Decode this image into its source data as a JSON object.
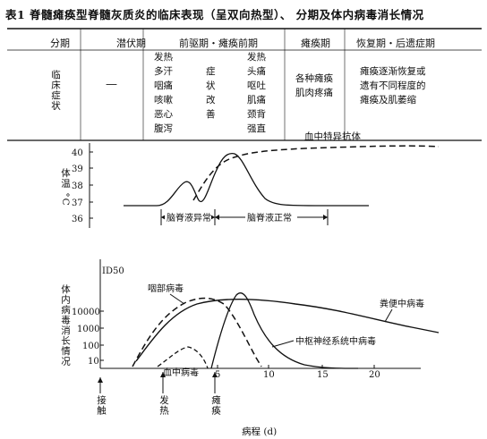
{
  "title": "表1   脊髓瘫痪型脊髓灰质炎的临床表现（呈双向热型）、  分期及体内病毒消长情况",
  "table": {
    "headers": [
      "分期",
      "潜伏期",
      "前驱期・瘫痪前期",
      "瘫痪期",
      "恢复期・后遗症期"
    ],
    "row_label": "临床症状",
    "incubation_value": "—",
    "prodromal_col1": [
      "发热",
      "多汗",
      "咽痛",
      "咳嗽",
      "恶心",
      "腹泻"
    ],
    "prodromal_col2": [
      "症",
      "状",
      "改",
      "善"
    ],
    "prodromal_col3": [
      "发热",
      "头痛",
      "呕吐",
      "肌痛",
      "颈背",
      "强直"
    ],
    "paralytic": [
      "各种瘫痪",
      "肌肉疼痛"
    ],
    "recovery": [
      "瘫痪逐渐恢复或",
      "遗有不同程度的",
      "瘫痪及肌萎缩"
    ]
  },
  "temp_chart": {
    "ylabel": "体温 °C",
    "yticks": [
      "40",
      "39",
      "38",
      "37",
      "36"
    ],
    "antibody_label": "血中特异抗体",
    "csf_abnormal": "脑脊液异常",
    "csf_normal": "脑脊液正常"
  },
  "virus_chart": {
    "ylabel": "体内病毒消长情况",
    "id50": "ID50",
    "yticks": [
      "10000",
      "1000",
      "100",
      "10"
    ],
    "xticks": [
      "5",
      "10",
      "15",
      "20"
    ],
    "labels": {
      "pharynx": "咽部病毒",
      "feces": "粪便中病毒",
      "cns": "中枢神经系统中病毒",
      "blood": "血中病毒"
    }
  },
  "events": [
    "接触",
    "发热",
    "瘫痪"
  ],
  "xlabel": "病程 (d)"
}
